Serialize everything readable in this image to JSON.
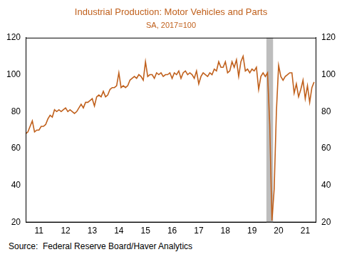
{
  "chart_data": {
    "type": "line",
    "title": "Industrial Production: Motor Vehicles and Parts",
    "subtitle": "SA, 2017=100",
    "source": "Source:  Federal Reserve Board/Haver Analytics",
    "color": "#c0601c",
    "categories": [
      null,
      null,
      null,
      null,
      null,
      null,
      "11",
      null,
      null,
      null,
      null,
      null,
      null,
      null,
      null,
      null,
      null,
      null,
      "12",
      null,
      null,
      null,
      null,
      null,
      null,
      null,
      null,
      null,
      null,
      null,
      "13",
      null,
      null,
      null,
      null,
      null,
      null,
      null,
      null,
      null,
      null,
      null,
      "14",
      null,
      null,
      null,
      null,
      null,
      null,
      null,
      null,
      null,
      null,
      null,
      "15",
      null,
      null,
      null,
      null,
      null,
      null,
      null,
      null,
      null,
      null,
      null,
      "16",
      null,
      null,
      null,
      null,
      null,
      null,
      null,
      null,
      null,
      null,
      null,
      "17",
      null,
      null,
      null,
      null,
      null,
      null,
      null,
      null,
      null,
      null,
      null,
      "18",
      null,
      null,
      null,
      null,
      null,
      null,
      null,
      null,
      null,
      null,
      null,
      "19",
      null,
      null,
      null,
      null,
      null,
      null,
      null,
      null,
      null,
      null,
      null,
      "20",
      null,
      null,
      null,
      null,
      null,
      null,
      null,
      null,
      null,
      null,
      null,
      "21",
      null,
      null,
      null,
      null,
      null
    ],
    "values": [
      68,
      69,
      72,
      75,
      69,
      70,
      70,
      72,
      72,
      73,
      76,
      78,
      77,
      81,
      80,
      81,
      80,
      81,
      82,
      80,
      81,
      80,
      79,
      80,
      82,
      84,
      82,
      85,
      85,
      86,
      87,
      83,
      88,
      89,
      88,
      91,
      88,
      89,
      92,
      93,
      93,
      94,
      101,
      93,
      94,
      93,
      94,
      97,
      98,
      99,
      98,
      100,
      99,
      97,
      107,
      99,
      100,
      100,
      98,
      101,
      100,
      101,
      99,
      100,
      100,
      101,
      98,
      101,
      100,
      102,
      98,
      101,
      102,
      100,
      101,
      100,
      98,
      102,
      95,
      99,
      101,
      100,
      99,
      101,
      100,
      103,
      102,
      107,
      104,
      104,
      107,
      101,
      102,
      107,
      104,
      108,
      99,
      107,
      110,
      102,
      103,
      101,
      103,
      102,
      104,
      92,
      99,
      101,
      99,
      101,
      73,
      21,
      38,
      80,
      105,
      99,
      97,
      99,
      100,
      101,
      101,
      90,
      95,
      88,
      92,
      97,
      87,
      94,
      85,
      93,
      96,
      null
    ],
    "recession_shading": [
      {
        "start": 109,
        "end": 111
      }
    ],
    "ylim": [
      20,
      120
    ],
    "yticks": [
      20,
      40,
      60,
      80,
      100,
      120
    ],
    "grid": false
  }
}
